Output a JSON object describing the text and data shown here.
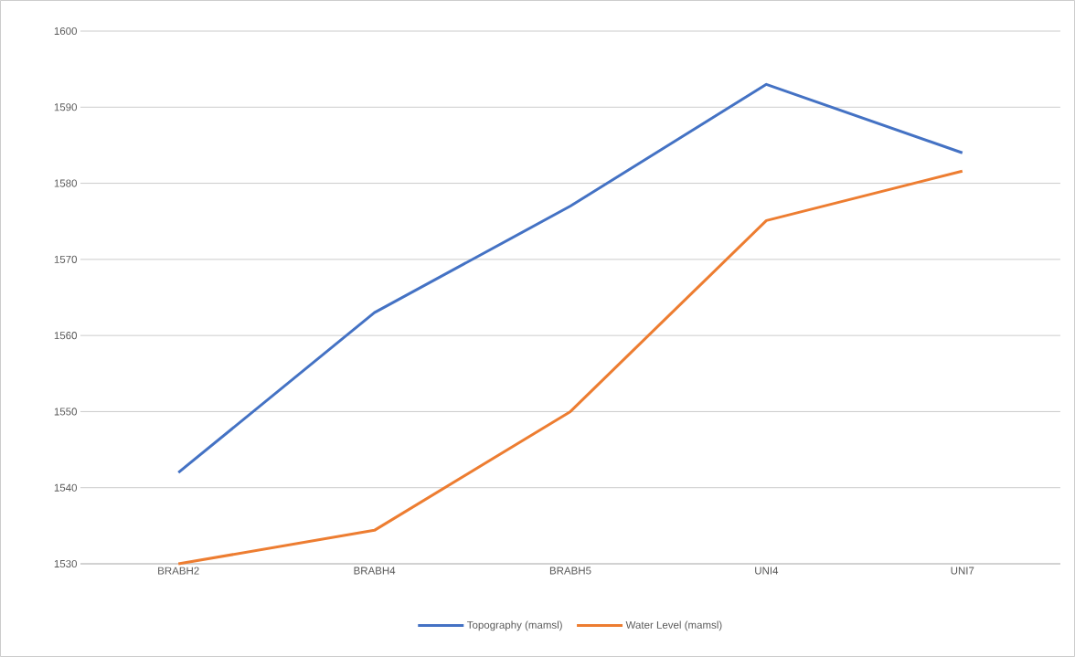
{
  "chart_data": {
    "type": "line",
    "categories": [
      "BRABH2",
      "BRABH4",
      "BRABH5",
      "UNI4",
      "UNI7"
    ],
    "series": [
      {
        "name": "Topography (mamsl)",
        "color": "#4472c4",
        "values": [
          1542,
          1563,
          1577,
          1593,
          1584
        ]
      },
      {
        "name": "Water Level (mamsl)",
        "color": "#ed7d31",
        "values": [
          1530,
          1534.4,
          1550,
          1575.1,
          1581.6
        ]
      }
    ],
    "ylim": [
      1530,
      1600
    ],
    "yticks": [
      1530,
      1540,
      1550,
      1560,
      1570,
      1580,
      1590,
      1600
    ],
    "grid": "y",
    "legend": "bottom",
    "marker": "none",
    "line_style": "solid"
  }
}
